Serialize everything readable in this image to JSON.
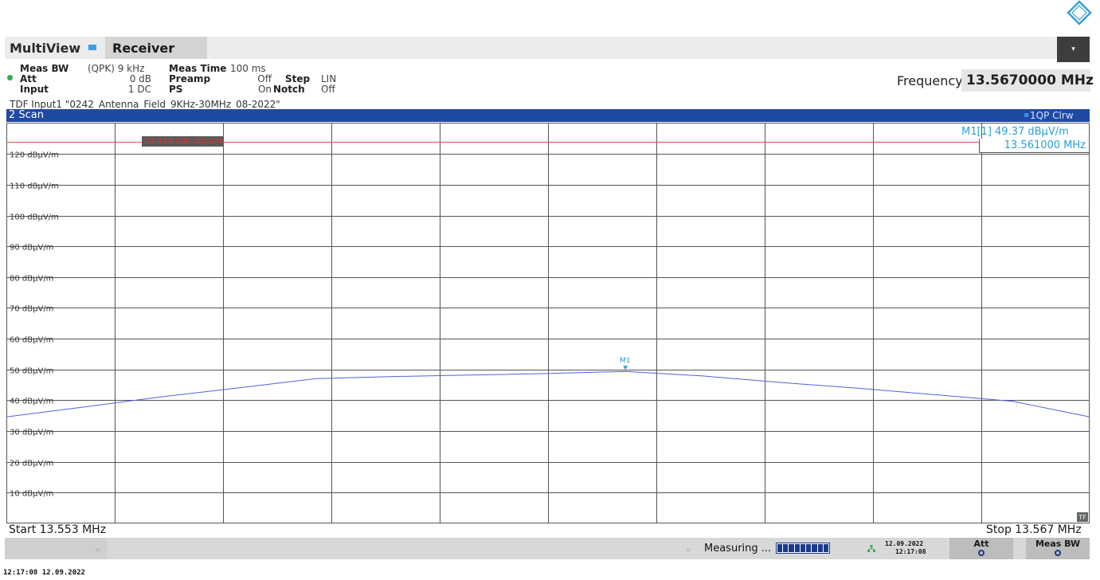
{
  "header": {
    "app_tab": "MultiView",
    "channel_tab": "Receiver",
    "dropdown_glyph": "▾"
  },
  "settings": {
    "meas_bw_label": "Meas BW",
    "meas_bw_value": "(QPK) 9 kHz",
    "meas_time_label": "Meas Time",
    "meas_time_value": "100 ms",
    "att_label": "Att",
    "att_value": "0 dB",
    "preamp_label": "Preamp",
    "preamp_value": "Off",
    "step_label": "Step",
    "step_value": "LIN",
    "input_label": "Input",
    "input_value": "1 DC",
    "ps_label": "PS",
    "ps_value": "On",
    "notch_label": "Notch",
    "notch_value": "Off"
  },
  "frequency": {
    "label": "Frequency",
    "value": "13.5670000 MHz"
  },
  "tdf_line": "TDF Input1 \"0242_Antenna_Field_9KHz-30MHz_08-2022\"",
  "scan": {
    "title": "2 Scan",
    "trace_label": "1QP Clrw",
    "marker_readout": "M1[1]  49.37 dBµV/m",
    "marker_freq": "13.561000 MHz",
    "marker_name": "M1",
    "h1_label": "H1 124.000 dBµV/m",
    "tf_badge": "TF",
    "start_label": "Start 13.553 MHz",
    "stop_label": "Stop 13.567 MHz"
  },
  "chart_data": {
    "type": "line",
    "x_unit": "MHz",
    "y_unit": "dBµV/m",
    "xlim": [
      13.553,
      13.567
    ],
    "ylim": [
      0,
      130
    ],
    "yticks": [
      {
        "value": 120,
        "label": "120 dBµV/m"
      },
      {
        "value": 110,
        "label": "110 dBµV/m"
      },
      {
        "value": 100,
        "label": "100 dBµV/m"
      },
      {
        "value": 90,
        "label": "90 dBµV/m"
      },
      {
        "value": 80,
        "label": "80 dBµV/m"
      },
      {
        "value": 70,
        "label": "70 dBµV/m"
      },
      {
        "value": 60,
        "label": "60 dBµV/m"
      },
      {
        "value": 50,
        "label": "50 dBµV/m"
      },
      {
        "value": 40,
        "label": "40 dBµV/m"
      },
      {
        "value": 30,
        "label": "30 dBµV/m"
      },
      {
        "value": 20,
        "label": "20 dBµV/m"
      },
      {
        "value": 10,
        "label": "10 dBµV/m"
      }
    ],
    "x_divisions": 10,
    "grid": true,
    "limit_line": {
      "value": 124.0
    },
    "series": [
      {
        "x": [
          13.553,
          13.554,
          13.555,
          13.556,
          13.557,
          13.558,
          13.559,
          13.56,
          13.561,
          13.562,
          13.563,
          13.564,
          13.565,
          13.566,
          13.567
        ],
        "y": [
          34.6,
          37.8,
          41.1,
          44.0,
          47.0,
          47.7,
          48.2,
          48.7,
          49.37,
          47.9,
          45.8,
          43.9,
          41.8,
          39.7,
          34.6
        ]
      }
    ],
    "marker": {
      "x": 13.561,
      "y": 49.37
    }
  },
  "status": {
    "measuring_text": "Measuring ...",
    "progress_segments": 9,
    "date": "12.09.2022",
    "time": "12:17:08",
    "att_button": "Att",
    "measbw_button": "Meas BW"
  },
  "footer": {
    "timestamp": "12:17:08  12.09.2022"
  },
  "colors": {
    "accent_blue": "#1f4aa3",
    "trace": "#5060e0",
    "limit": "#e05050",
    "marker": "#2a9fd6"
  },
  "icons": {
    "logo": "rohde-schwarz-logo",
    "network": "network-icon"
  }
}
